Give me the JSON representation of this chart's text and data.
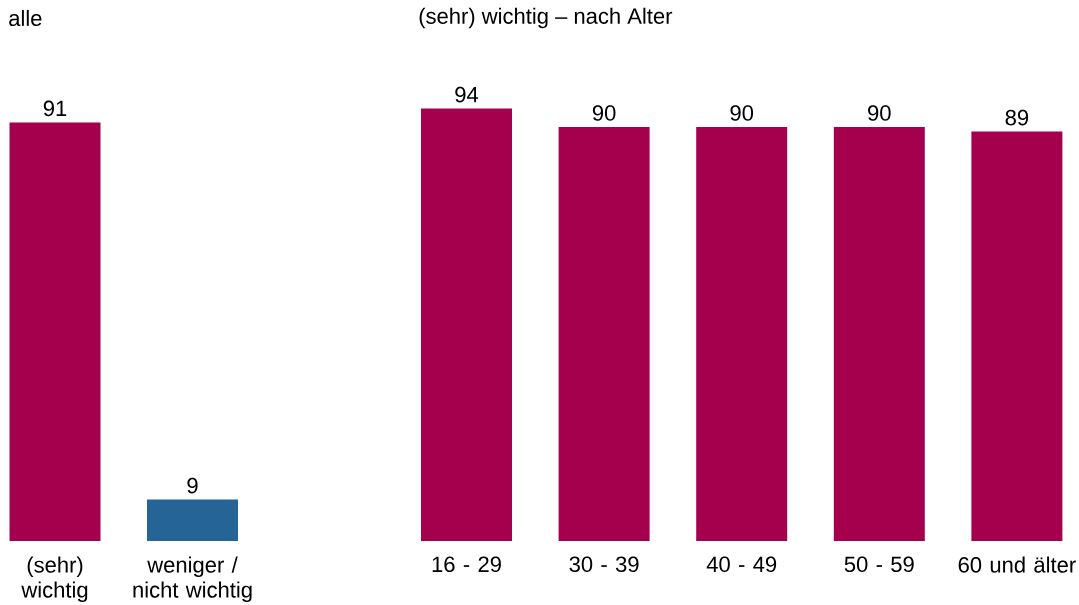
{
  "chart_data": [
    {
      "type": "bar",
      "title": "alle",
      "categories": [
        "(sehr) wichtig",
        "weniger / nicht wichtig"
      ],
      "values": [
        91,
        9
      ],
      "colors": [
        "#a5004d",
        "#246496"
      ],
      "data_labels": true
    },
    {
      "type": "bar",
      "title": "(sehr) wichtig  – nach Alter",
      "categories": [
        "16 - 29",
        "30 - 39",
        "40 - 49",
        "50 - 59",
        "60 und älter"
      ],
      "values": [
        94,
        90,
        90,
        90,
        89
      ],
      "colors": [
        "#a5004d",
        "#a5004d",
        "#a5004d",
        "#a5004d",
        "#a5004d"
      ],
      "data_labels": true
    }
  ]
}
